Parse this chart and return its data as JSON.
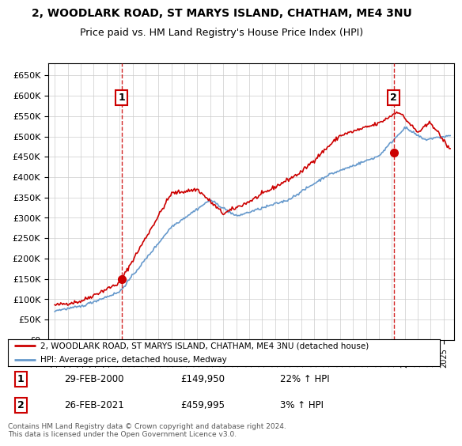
{
  "title": "2, WOODLARK ROAD, ST MARYS ISLAND, CHATHAM, ME4 3NU",
  "subtitle": "Price paid vs. HM Land Registry's House Price Index (HPI)",
  "legend_line1": "2, WOODLARK ROAD, ST MARYS ISLAND, CHATHAM, ME4 3NU (detached house)",
  "legend_line2": "HPI: Average price, detached house, Medway",
  "annotation1_date": "29-FEB-2000",
  "annotation1_price": "£149,950",
  "annotation1_hpi": "22% ↑ HPI",
  "annotation2_date": "26-FEB-2021",
  "annotation2_price": "£459,995",
  "annotation2_hpi": "3% ↑ HPI",
  "footer": "Contains HM Land Registry data © Crown copyright and database right 2024.\nThis data is licensed under the Open Government Licence v3.0.",
  "sale1_year": 2000.16,
  "sale1_value": 149950,
  "sale2_year": 2021.15,
  "sale2_value": 459995,
  "red_line_color": "#cc0000",
  "blue_line_color": "#6699cc",
  "background_color": "#ffffff",
  "grid_color": "#cccccc",
  "ylim": [
    0,
    680000
  ],
  "xlim_start": 1994.5,
  "xlim_end": 2025.8
}
